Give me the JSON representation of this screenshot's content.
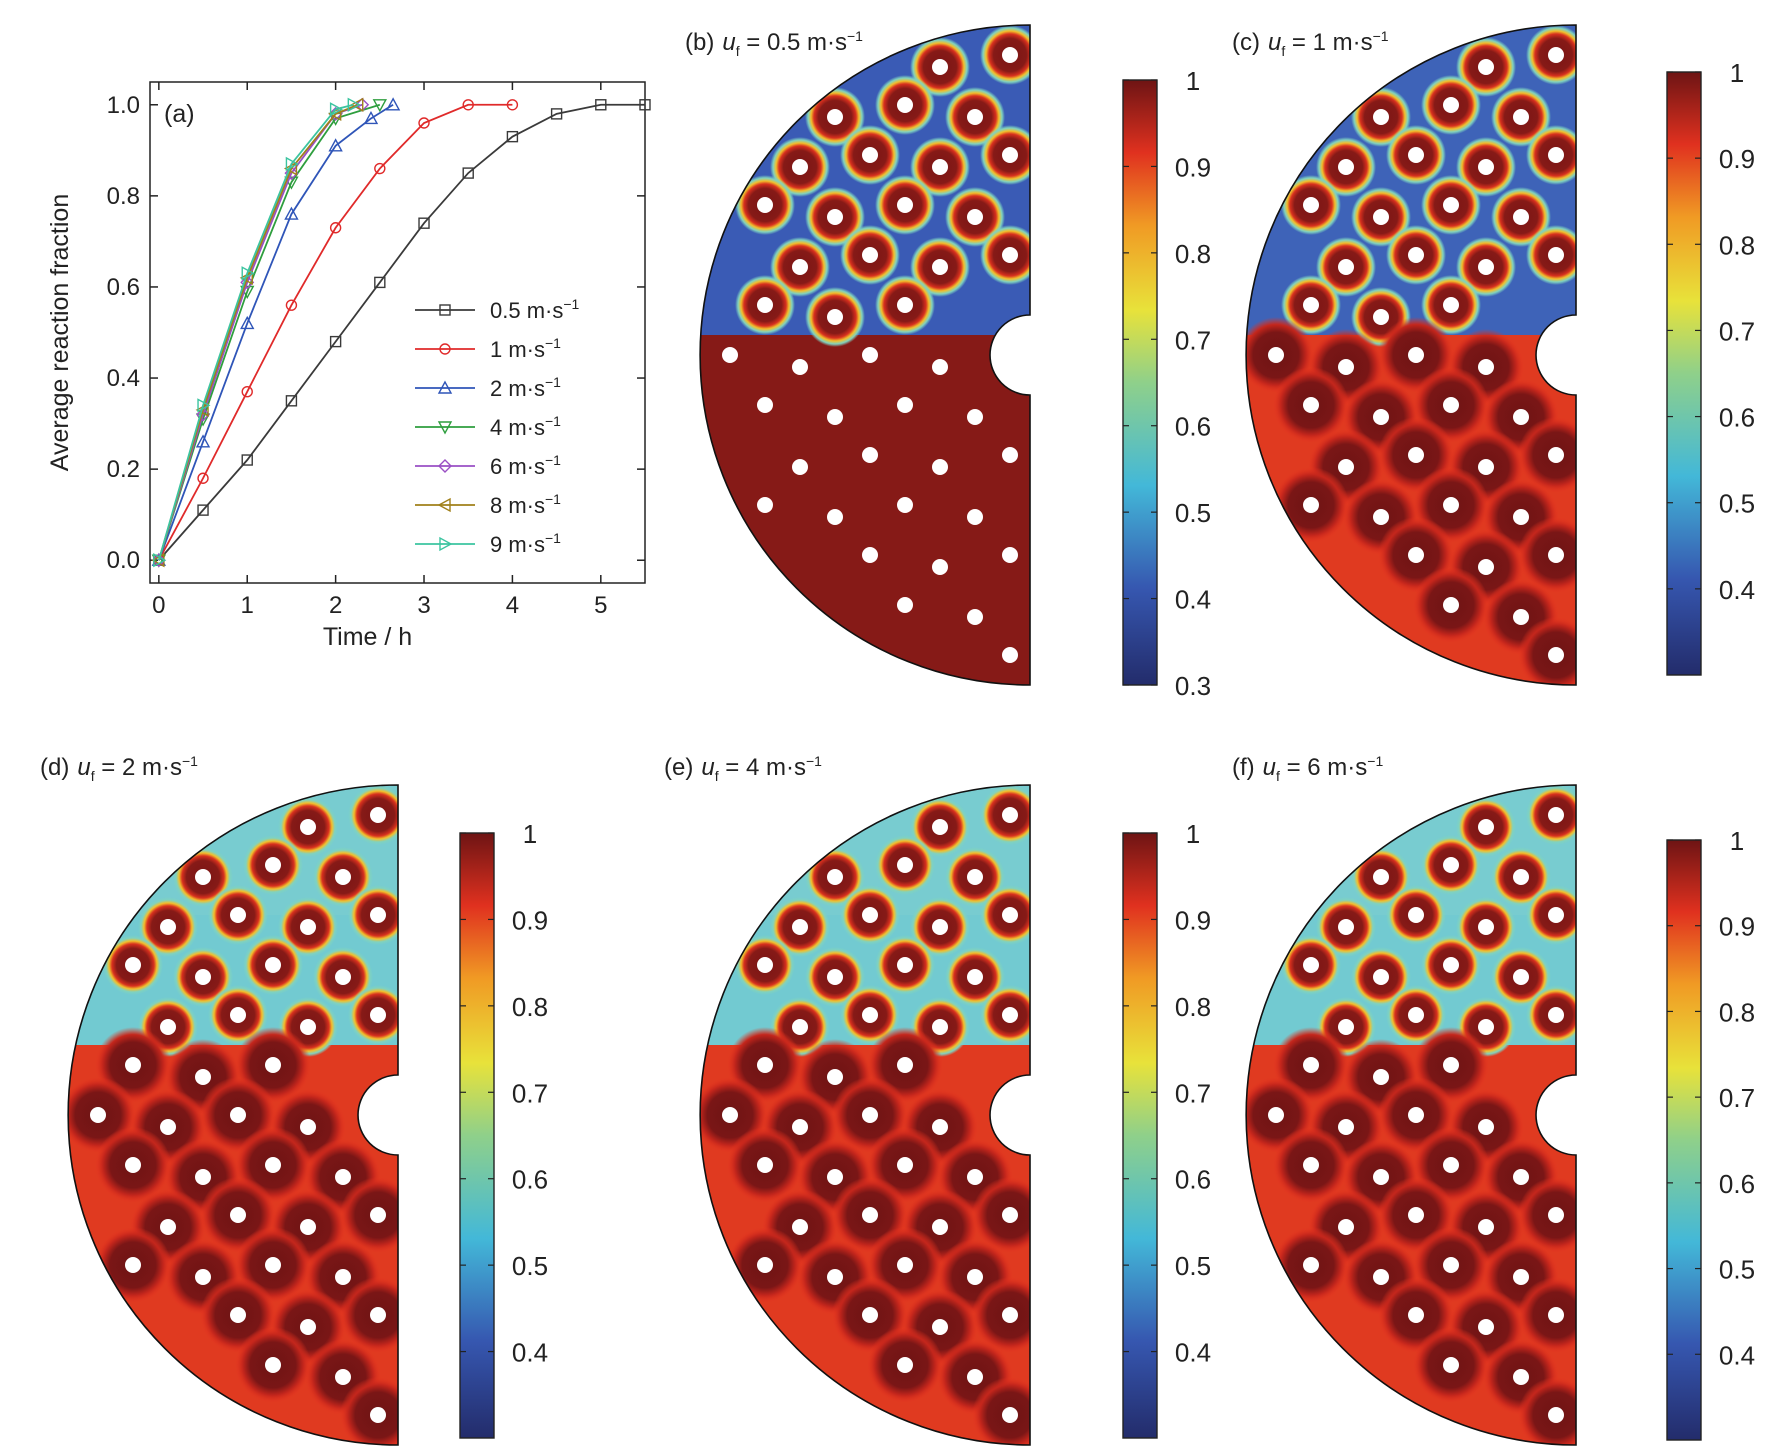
{
  "chart_data": [
    {
      "type": "line",
      "panel_label": "(a)",
      "xlabel": "Time / h",
      "ylabel": "Average reaction fraction",
      "xlim": [
        -0.1,
        5.5
      ],
      "ylim": [
        -0.05,
        1.05
      ],
      "xticks": [
        0,
        1,
        2,
        3,
        4,
        5
      ],
      "xtick_labels": [
        "0",
        "1",
        "2",
        "3",
        "4",
        "5"
      ],
      "yticks": [
        0,
        0.2,
        0.4,
        0.6,
        0.8,
        1.0
      ],
      "ytick_labels": [
        "0.0",
        "0.2",
        "0.4",
        "0.6",
        "0.8",
        "1.0"
      ],
      "legend_position": "center-right",
      "series": [
        {
          "name": "0.5 m·s",
          "exp": "−1",
          "color": "#3a3a3a",
          "marker": "square",
          "x": [
            0.0,
            0.5,
            1.0,
            1.5,
            2.0,
            2.5,
            3.0,
            3.5,
            4.0,
            4.5,
            5.0,
            5.5
          ],
          "y": [
            0.0,
            0.11,
            0.22,
            0.35,
            0.48,
            0.61,
            0.74,
            0.85,
            0.93,
            0.98,
            1.0,
            1.0
          ]
        },
        {
          "name": "1 m·s",
          "exp": "−1",
          "color": "#e02a2a",
          "marker": "circle",
          "x": [
            0.0,
            0.5,
            1.0,
            1.5,
            2.0,
            2.5,
            3.0,
            3.5,
            4.0
          ],
          "y": [
            0.0,
            0.18,
            0.37,
            0.56,
            0.73,
            0.86,
            0.96,
            1.0,
            1.0
          ]
        },
        {
          "name": "2 m·s",
          "exp": "−1",
          "color": "#2f55b8",
          "marker": "triangle-up",
          "x": [
            0.0,
            0.5,
            1.0,
            1.5,
            2.0,
            2.4,
            2.65
          ],
          "y": [
            0.0,
            0.26,
            0.52,
            0.76,
            0.91,
            0.97,
            1.0
          ]
        },
        {
          "name": "4 m·s",
          "exp": "−1",
          "color": "#2e9e3e",
          "marker": "triangle-down",
          "x": [
            0.0,
            0.5,
            1.0,
            1.5,
            2.0,
            2.5
          ],
          "y": [
            0.0,
            0.31,
            0.59,
            0.83,
            0.97,
            1.0
          ]
        },
        {
          "name": "6 m·s",
          "exp": "−1",
          "color": "#9a4fc4",
          "marker": "diamond",
          "x": [
            0.0,
            0.5,
            1.0,
            1.5,
            2.0,
            2.3
          ],
          "y": [
            0.0,
            0.32,
            0.61,
            0.85,
            0.98,
            1.0
          ]
        },
        {
          "name": "8 m·s",
          "exp": "−1",
          "color": "#a0801a",
          "marker": "triangle-left",
          "x": [
            0.0,
            0.5,
            1.0,
            1.5,
            2.0,
            2.25
          ],
          "y": [
            0.0,
            0.33,
            0.62,
            0.86,
            0.98,
            1.0
          ]
        },
        {
          "name": "9 m·s",
          "exp": "−1",
          "color": "#3cc4a0",
          "marker": "triangle-right",
          "x": [
            0.0,
            0.5,
            1.0,
            1.5,
            2.0,
            2.2
          ],
          "y": [
            0.0,
            0.34,
            0.63,
            0.87,
            0.99,
            1.0
          ]
        }
      ]
    },
    {
      "type": "heatmap",
      "panel_label": "(b)",
      "title_var": "u",
      "title_sub": "f",
      "title_value": " = 0.5 m·s",
      "title_exp": "−1",
      "colorbar_ticks": [
        "1",
        "0.9",
        "0.8",
        "0.7",
        "0.6",
        "0.5",
        "0.4",
        "0.3"
      ],
      "colorbar_range": [
        0.3,
        1.0
      ]
    },
    {
      "type": "heatmap",
      "panel_label": "(c)",
      "title_var": "u",
      "title_sub": "f",
      "title_value": " = 1 m·s",
      "title_exp": "−1",
      "colorbar_ticks": [
        "1",
        "0.9",
        "0.8",
        "0.7",
        "0.6",
        "0.5",
        "0.4"
      ],
      "colorbar_range": [
        0.3,
        1.0
      ]
    },
    {
      "type": "heatmap",
      "panel_label": "(d)",
      "title_var": "u",
      "title_sub": "f",
      "title_value": " = 2 m·s",
      "title_exp": "−1",
      "colorbar_ticks": [
        "1",
        "0.9",
        "0.8",
        "0.7",
        "0.6",
        "0.5",
        "0.4"
      ],
      "colorbar_range": [
        0.3,
        1.0
      ]
    },
    {
      "type": "heatmap",
      "panel_label": "(e)",
      "title_var": "u",
      "title_sub": "f",
      "title_value": " = 4 m·s",
      "title_exp": "−1",
      "colorbar_ticks": [
        "1",
        "0.9",
        "0.8",
        "0.7",
        "0.6",
        "0.5",
        "0.4"
      ],
      "colorbar_range": [
        0.3,
        1.0
      ]
    },
    {
      "type": "heatmap",
      "panel_label": "(f)",
      "title_var": "u",
      "title_sub": "f",
      "title_value": " = 6 m·s",
      "title_exp": "−1",
      "colorbar_ticks": [
        "1",
        "0.9",
        "0.8",
        "0.7",
        "0.6",
        "0.5",
        "0.4"
      ],
      "colorbar_range": [
        0.3,
        1.0
      ]
    }
  ]
}
